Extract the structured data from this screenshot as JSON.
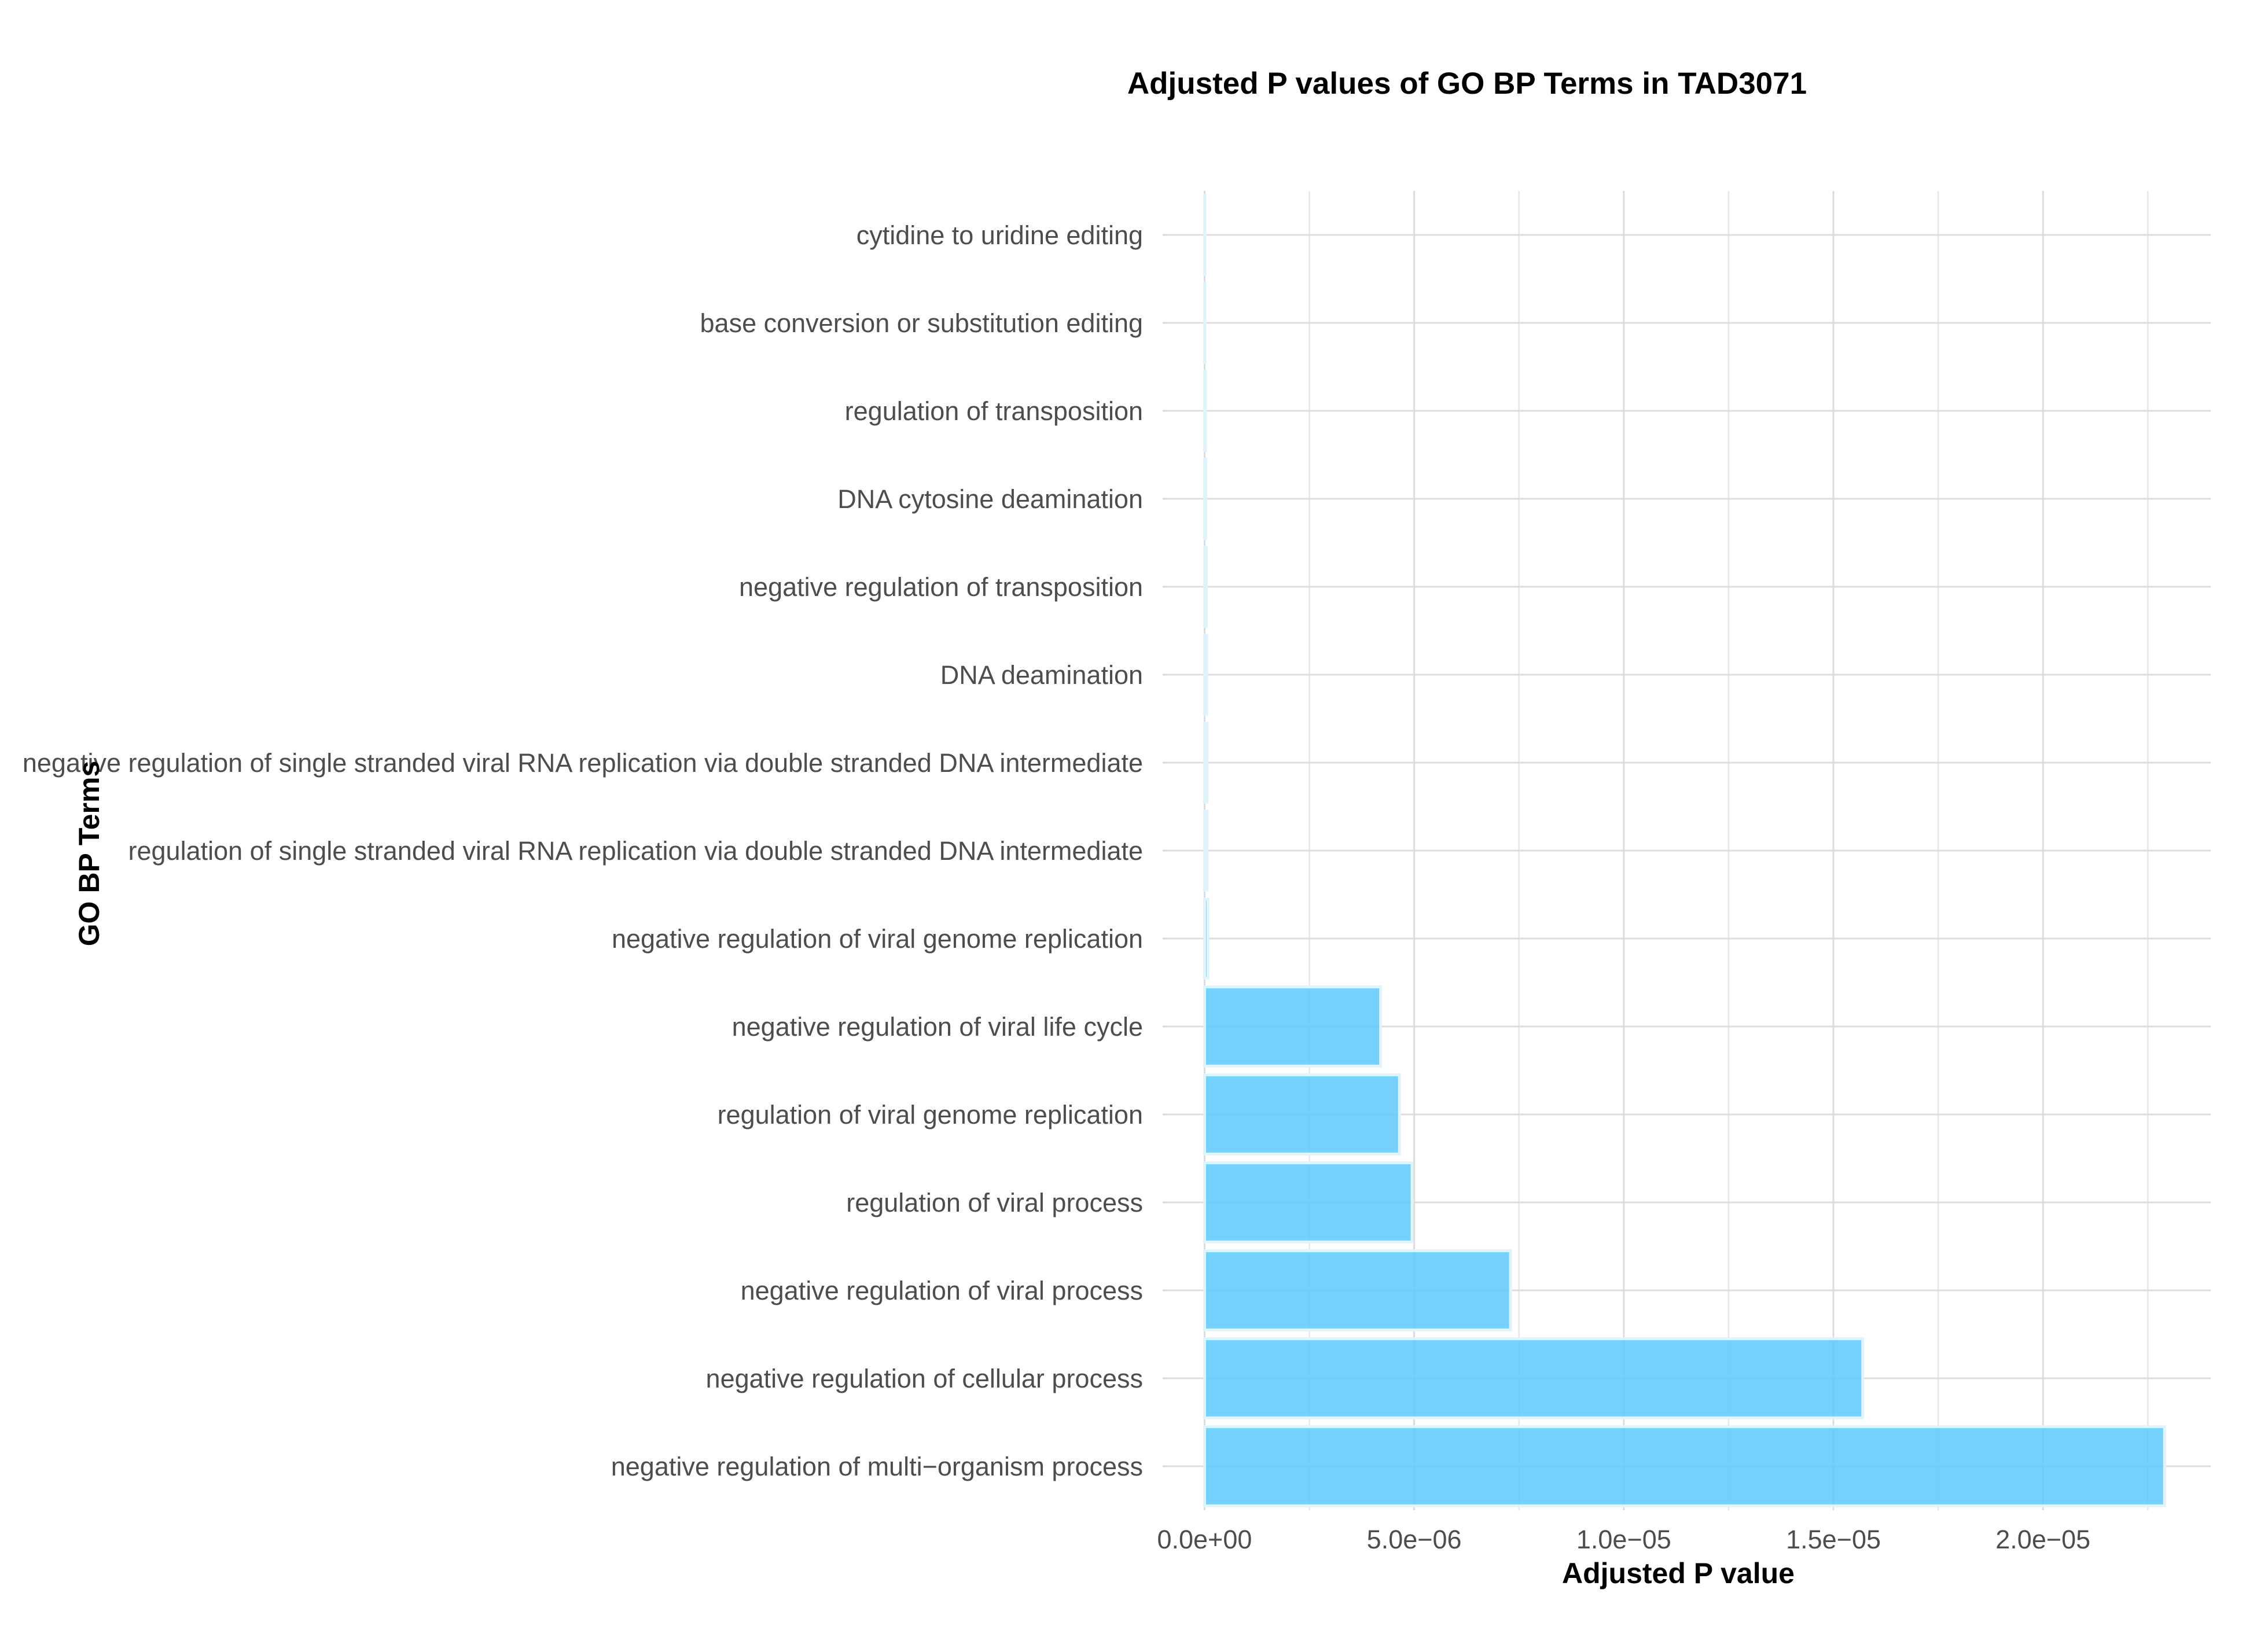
{
  "chart_data": {
    "type": "bar",
    "orientation": "horizontal",
    "title": "Adjusted P values of GO BP Terms in TAD3071",
    "xlabel": "Adjusted P value",
    "ylabel": "GO BP Terms",
    "categories": [
      "cytidine to uridine editing",
      "base conversion or substitution editing",
      "regulation of transposition",
      "DNA cytosine deamination",
      "negative regulation of transposition",
      "DNA deamination",
      "negative regulation of single stranded viral RNA replication via double stranded DNA intermediate",
      "regulation of single stranded viral RNA replication via double stranded DNA intermediate",
      "negative regulation of viral genome replication",
      "negative regulation of viral life cycle",
      "regulation of viral genome replication",
      "regulation of viral process",
      "negative regulation of viral process",
      "negative regulation of cellular process",
      "negative regulation of multi−organism process"
    ],
    "values": [
      1e-08,
      1e-08,
      2e-08,
      3e-08,
      4e-08,
      5e-08,
      6e-08,
      6e-08,
      8e-08,
      4.2e-06,
      4.65e-06,
      4.95e-06,
      7.3e-06,
      1.57e-05,
      2.29e-05
    ],
    "xlim": [
      -1e-06,
      2.4e-05
    ],
    "xticks": [
      0,
      5e-06,
      1e-05,
      1.5e-05,
      2e-05
    ],
    "xtick_labels": [
      "0.0e+00",
      "5.0e−06",
      "1.0e−05",
      "1.5e−05",
      "2.0e−05"
    ],
    "bar_color": "#5ec8fb",
    "bar_edge_color": "#dff3fd",
    "grid": true,
    "legend": false
  }
}
